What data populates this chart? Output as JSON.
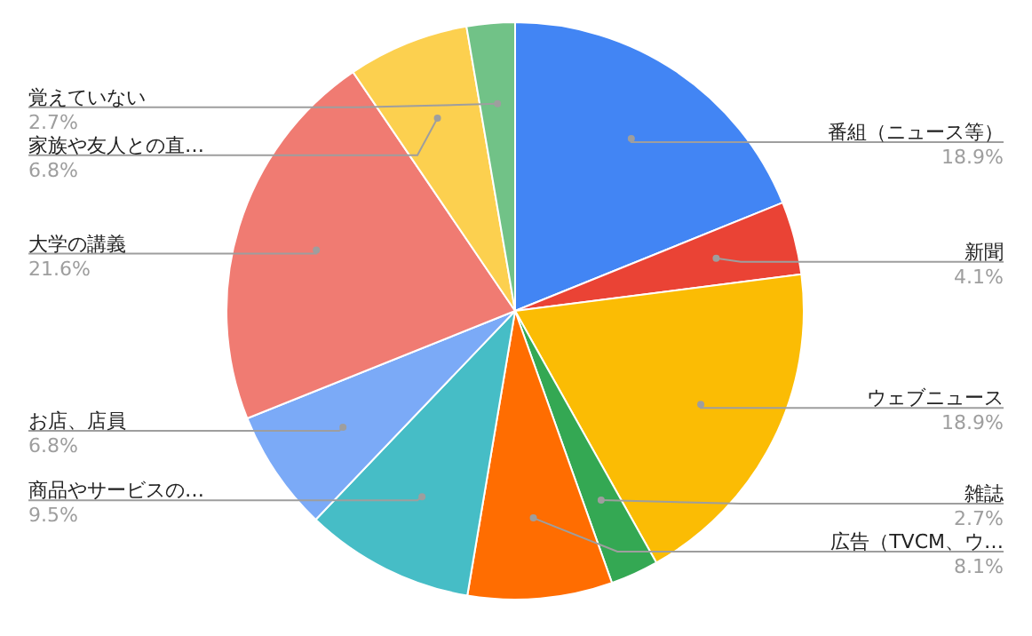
{
  "chart_data": {
    "type": "pie",
    "categories": [
      "番組（ニュース等）",
      "新聞",
      "ウェブニュース",
      "雑誌",
      "広告（TVCM、ウ…",
      "商品やサービスの…",
      "お店、店員",
      "大学の講義",
      "家族や友人との直…",
      "覚えていない"
    ],
    "values": [
      18.9,
      4.1,
      18.9,
      2.7,
      8.1,
      9.5,
      6.8,
      21.6,
      6.8,
      2.7
    ],
    "value_labels": [
      "18.9%",
      "4.1%",
      "18.9%",
      "2.7%",
      "8.1%",
      "9.5%",
      "6.8%",
      "21.6%",
      "6.8%",
      "2.7%"
    ],
    "colors": [
      "#4285f4",
      "#ea4335",
      "#fbbc04",
      "#34a853",
      "#ff6d01",
      "#46bdc6",
      "#7baaf7",
      "#f07b72",
      "#fcd04f",
      "#71c287"
    ],
    "legend": false
  }
}
